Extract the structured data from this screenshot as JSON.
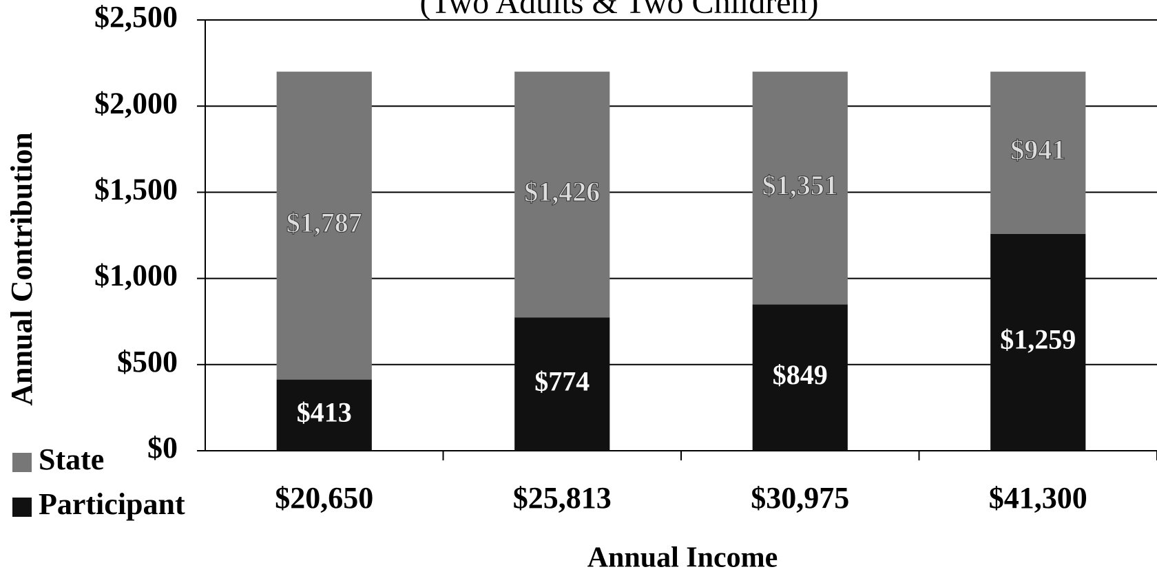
{
  "chart_data": {
    "type": "stacked_bar",
    "subtitle": "(Two Adults & Two Children)",
    "x_label": "Annual Income",
    "y_label": "Annual Contribution",
    "categories": [
      "$20,650",
      "$25,813",
      "$30,975",
      "$41,300"
    ],
    "series": [
      {
        "name": "Participant",
        "color": "#111111",
        "values": [
          413,
          774,
          849,
          1259
        ],
        "value_labels": [
          "$413",
          "$774",
          "$849",
          "$1,259"
        ]
      },
      {
        "name": "State",
        "color": "#777777",
        "values": [
          1787,
          1426,
          1351,
          941
        ],
        "value_labels": [
          "$1,787",
          "$1,426",
          "$1,351",
          "$941"
        ]
      }
    ],
    "ylim": [
      0,
      2500
    ],
    "yticks": [
      {
        "value": 0,
        "label": "$0"
      },
      {
        "value": 500,
        "label": "$500"
      },
      {
        "value": 1000,
        "label": "$1,000"
      },
      {
        "value": 1500,
        "label": "$1,500"
      },
      {
        "value": 2000,
        "label": "$2,000"
      },
      {
        "value": 2500,
        "label": "$2,500"
      }
    ],
    "grid": true
  }
}
